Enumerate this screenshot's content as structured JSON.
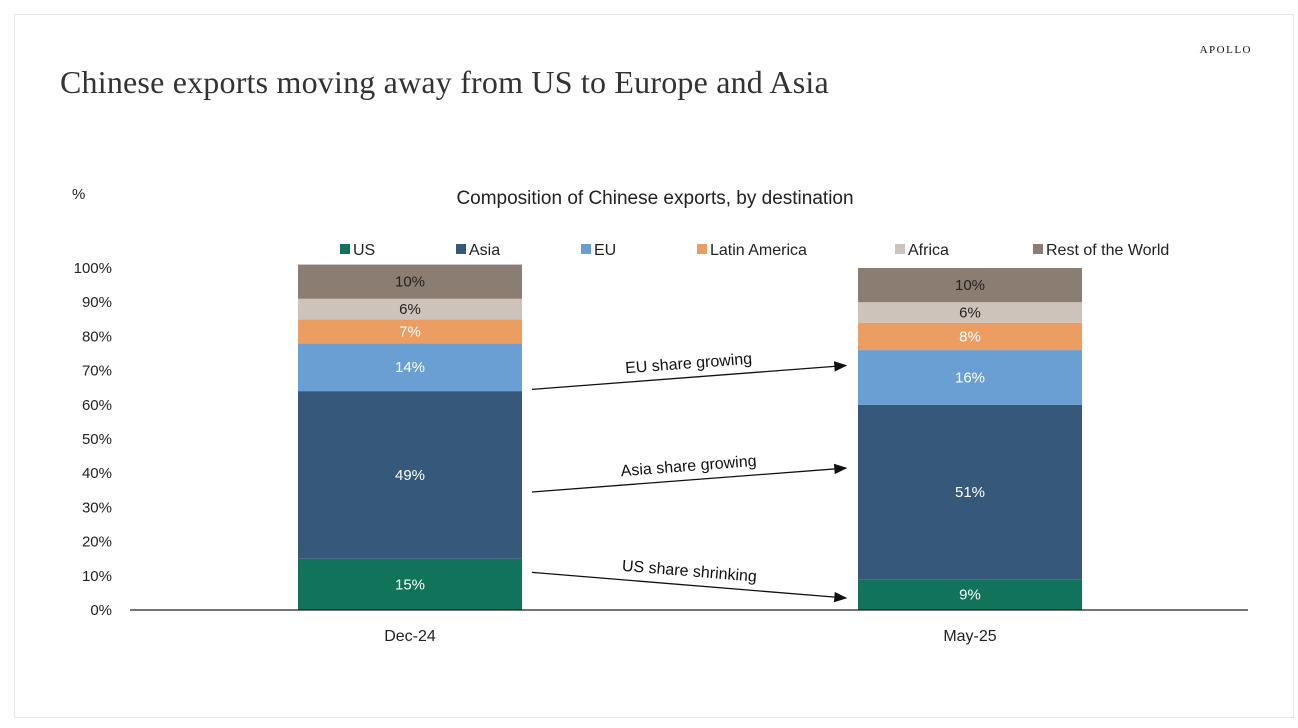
{
  "page": {
    "title": "Chinese exports moving away from US to Europe and Asia",
    "brand": "APOLLO"
  },
  "chart_data": {
    "type": "bar",
    "stacked": true,
    "title": "Composition of Chinese exports, by destination",
    "ylabel": "%",
    "xlabel": "",
    "ylim": [
      0,
      100
    ],
    "yticks": [
      "0%",
      "10%",
      "20%",
      "30%",
      "40%",
      "50%",
      "60%",
      "70%",
      "80%",
      "90%",
      "100%"
    ],
    "categories": [
      "Dec-24",
      "May-25"
    ],
    "legend_position": "top",
    "series": [
      {
        "name": "US",
        "color": "#10735a",
        "label_color": "#ffffff",
        "values": [
          15,
          9
        ],
        "labels": [
          "15%",
          "9%"
        ]
      },
      {
        "name": "Asia",
        "color": "#36587a",
        "label_color": "#ffffff",
        "values": [
          49,
          51
        ],
        "labels": [
          "49%",
          "51%"
        ]
      },
      {
        "name": "EU",
        "color": "#6a9fd4",
        "label_color": "#ffffff",
        "values": [
          14,
          16
        ],
        "labels": [
          "14%",
          "16%"
        ]
      },
      {
        "name": "Latin America",
        "color": "#eb9d62",
        "label_color": "#ffffff",
        "values": [
          7,
          8
        ],
        "labels": [
          "7%",
          "8%"
        ]
      },
      {
        "name": "Africa",
        "color": "#cdc3bb",
        "label_color": "#222222",
        "values": [
          6,
          6
        ],
        "labels": [
          "6%",
          "6%"
        ]
      },
      {
        "name": "Rest of the World",
        "color": "#8b7d72",
        "label_color": "#222222",
        "values": [
          10,
          10
        ],
        "labels": [
          "10%",
          "10%"
        ]
      }
    ],
    "annotations": [
      {
        "text": "EU share growing"
      },
      {
        "text": "Asia share growing"
      },
      {
        "text": "US share shrinking"
      }
    ]
  }
}
